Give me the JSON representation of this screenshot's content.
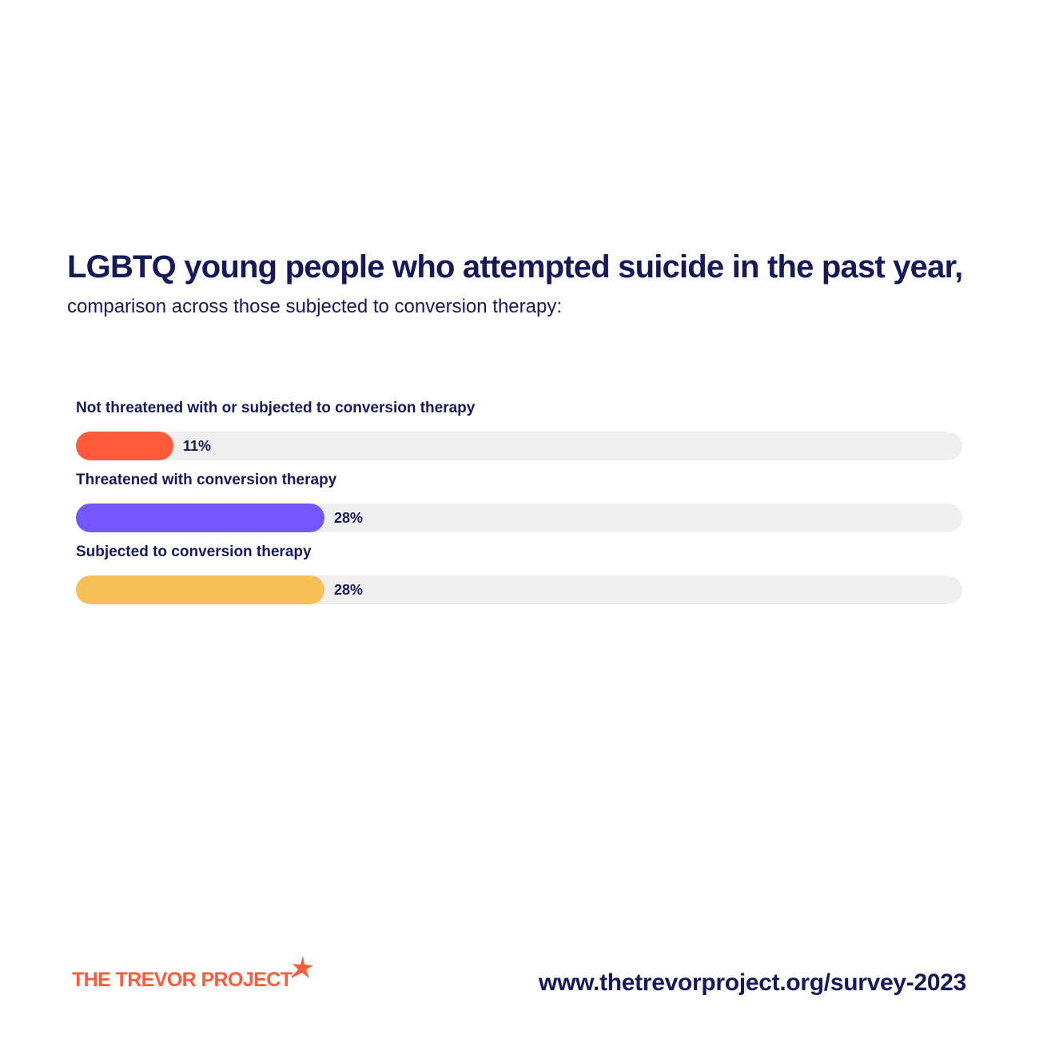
{
  "chart_data": {
    "type": "bar",
    "orientation": "horizontal",
    "title": "LGBTQ young people who attempted suicide in the past year,",
    "subtitle": "comparison across those subjected to conversion therapy:",
    "categories": [
      "Not threatened with or subjected to conversion therapy",
      "Threatened with conversion therapy",
      "Subjected to conversion therapy"
    ],
    "values": [
      11,
      28,
      28
    ],
    "value_labels": [
      "11%",
      "28%",
      "28%"
    ],
    "xlim": [
      0,
      100
    ],
    "colors": [
      "#ff5a3c",
      "#7356ff",
      "#f7c056"
    ],
    "track_color": "#efefef",
    "grid": false
  },
  "footer": {
    "logo_text": "THE TREVOR PROJECT",
    "url": "www.thetrevorproject.org/survey-2023",
    "logo_color": "#ff5a3c",
    "logo_icon": "star-icon"
  }
}
